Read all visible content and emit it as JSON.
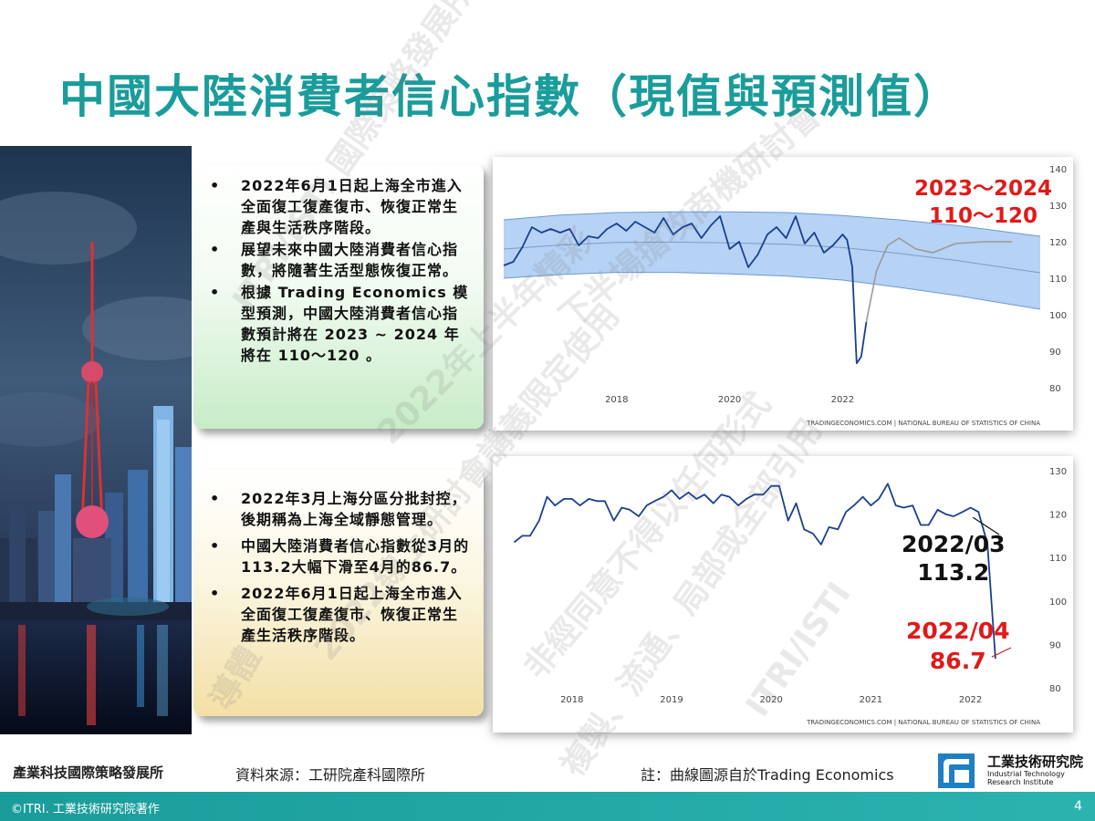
{
  "title": "中國大陸消費者信心指數（現值與預測值）",
  "box1": {
    "bullets": [
      "2022年6月1日起上海全市進入全面復工復產復市、恢復正常生產與生活秩序階段。",
      "展望未來中國大陸消費者信心指數，將隨著生活型態恢復正常。",
      "根據 Trading Economics 模型預測，中國大陸消費者信心指數預計將在 2023 ~ 2024 年將在 110～120 。"
    ]
  },
  "box2": {
    "bullets": [
      "2022年3月上海分區分批封控，後期稱為上海全域靜態管理。",
      "中國大陸消費者信心指數從3月的113.2大幅下滑至4月的86.7。",
      "2022年6月1日起上海全市進入全面復工復產復市、恢復正常生產生活秩序階段。"
    ]
  },
  "chart1_annotation": {
    "line1": "2023～2024",
    "line2": "110～120"
  },
  "chart2_annotations": {
    "mar_date": "2022/03",
    "mar_value": "113.2",
    "apr_date": "2022/04",
    "apr_value": "86.7"
  },
  "footer": {
    "org": "產業科技國際策略發展所",
    "source": "資料來源：工研院產科國際所",
    "note": "註：曲線圖源自於Trading Economics",
    "logo_name": "工業技術研究院",
    "logo_en1": "Industrial Technology",
    "logo_en2": "Research Institute",
    "copyright": "©ITRI. 工業技術研究院著作",
    "page": "4"
  },
  "watermark": [
    "ITRI/ISTI 國際策略發展所",
    "下半場搶攻商機研討會",
    "2022年上半年精彩",
    "非經同意不得以任何形式",
    "複製、流通、局部或全部引用",
    "2022線上研討會講義限定使用",
    "導體",
    "ITRI/ISTI"
  ],
  "colors": {
    "accent": "#1a9c9b",
    "line": "#1b3f8f",
    "band": "#9ec3f0",
    "red": "#e01a1a"
  },
  "chart_data": [
    {
      "type": "line",
      "title": "",
      "source": "TRADINGECONOMICS.COM  |  NATIONAL BUREAU OF STATISTICS OF CHINA",
      "x_tick_labels": [
        "2018",
        "2020",
        "2022"
      ],
      "x_ticks": [
        2018,
        2020,
        2022
      ],
      "xlim": [
        2016.0,
        2025.5
      ],
      "ylim": [
        80,
        140
      ],
      "y_ticks": [
        80,
        90,
        100,
        110,
        120,
        130,
        140
      ],
      "grid": false,
      "band": {
        "x": [
          2016.0,
          2017.0,
          2018.0,
          2019.0,
          2020.0,
          2021.0,
          2022.0,
          2023.0,
          2024.0,
          2025.5
        ],
        "upper": [
          126,
          127.3,
          128,
          128.2,
          128.2,
          128,
          127.2,
          126,
          124.5,
          121.5
        ],
        "lower": [
          110,
          111,
          111.6,
          111.6,
          111.2,
          110.6,
          109.5,
          107.5,
          105.3,
          101.5
        ],
        "mid": [
          118,
          119.1,
          119.8,
          119.9,
          119.7,
          119.3,
          118.4,
          116.8,
          114.9,
          111.5
        ]
      },
      "series": [
        {
          "kind": "actual",
          "x": [
            2016.0,
            2016.17,
            2016.33,
            2016.5,
            2016.67,
            2016.83,
            2017.0,
            2017.17,
            2017.33,
            2017.5,
            2017.67,
            2017.83,
            2018.0,
            2018.17,
            2018.33,
            2018.5,
            2018.67,
            2018.83,
            2019.0,
            2019.17,
            2019.33,
            2019.5,
            2019.67,
            2019.83,
            2020.0,
            2020.17,
            2020.33,
            2020.5,
            2020.67,
            2020.83,
            2021.0,
            2021.17,
            2021.33,
            2021.5,
            2021.67,
            2021.83,
            2022.0,
            2022.08,
            2022.17,
            2022.25,
            2022.33,
            2022.42
          ],
          "values": [
            113.5,
            114.5,
            118.5,
            124,
            122.5,
            123.5,
            122.5,
            123.5,
            119,
            121.5,
            121,
            123.5,
            125,
            123,
            125.5,
            124,
            122.5,
            126.5,
            122,
            124,
            125,
            121,
            124.5,
            127,
            118,
            120,
            113,
            116.5,
            122,
            124,
            121,
            127,
            119.5,
            122.5,
            117,
            119,
            122,
            120.5,
            113.2,
            86.7,
            88.5,
            98
          ]
        },
        {
          "kind": "forecast",
          "x": [
            2022.42,
            2022.6,
            2022.8,
            2023.0,
            2023.3,
            2023.6,
            2024.0,
            2024.5,
            2025.0
          ],
          "values": [
            98,
            112,
            119,
            121,
            118,
            117,
            119.5,
            120,
            120
          ]
        }
      ]
    },
    {
      "type": "line",
      "title": "",
      "source": "TRADINGECONOMICS.COM  |  NATIONAL BUREAU OF STATISTICS OF CHINA",
      "x_tick_labels": [
        "2018",
        "2019",
        "2020",
        "2021",
        "2022"
      ],
      "x_ticks": [
        2018,
        2019,
        2020,
        2021,
        2022
      ],
      "xlim": [
        2017.37,
        2022.7
      ],
      "ylim": [
        80,
        130
      ],
      "y_ticks": [
        80,
        90,
        100,
        110,
        120,
        130
      ],
      "grid": false,
      "series": [
        {
          "kind": "actual",
          "x": [
            2017.42,
            2017.5,
            2017.58,
            2017.67,
            2017.75,
            2017.83,
            2017.92,
            2018.0,
            2018.08,
            2018.17,
            2018.25,
            2018.33,
            2018.42,
            2018.5,
            2018.58,
            2018.67,
            2018.75,
            2018.83,
            2018.92,
            2019.0,
            2019.08,
            2019.17,
            2019.25,
            2019.33,
            2019.42,
            2019.5,
            2019.58,
            2019.67,
            2019.75,
            2019.83,
            2019.92,
            2020.0,
            2020.08,
            2020.17,
            2020.25,
            2020.33,
            2020.42,
            2020.5,
            2020.58,
            2020.67,
            2020.75,
            2020.83,
            2020.92,
            2021.0,
            2021.08,
            2021.17,
            2021.25,
            2021.33,
            2021.42,
            2021.5,
            2021.58,
            2021.67,
            2021.75,
            2021.83,
            2021.92,
            2022.0,
            2022.08,
            2022.17,
            2022.25
          ],
          "values": [
            113.5,
            115,
            115,
            118.5,
            124,
            122,
            123.5,
            123.5,
            122,
            123.5,
            123,
            123,
            118.5,
            121.5,
            121,
            119.5,
            122,
            123,
            124,
            125.5,
            123.5,
            125,
            123.5,
            124.5,
            122.5,
            124.5,
            124,
            122,
            123.5,
            124.5,
            124.5,
            126.5,
            126.5,
            118.5,
            122.5,
            116.5,
            115.5,
            113,
            117,
            116.5,
            120.5,
            122,
            124,
            122,
            123.5,
            127,
            122,
            121.5,
            122,
            117.5,
            117.5,
            121,
            120,
            119.5,
            120.5,
            121.5,
            120.5,
            113.2,
            86.7
          ]
        }
      ]
    }
  ]
}
